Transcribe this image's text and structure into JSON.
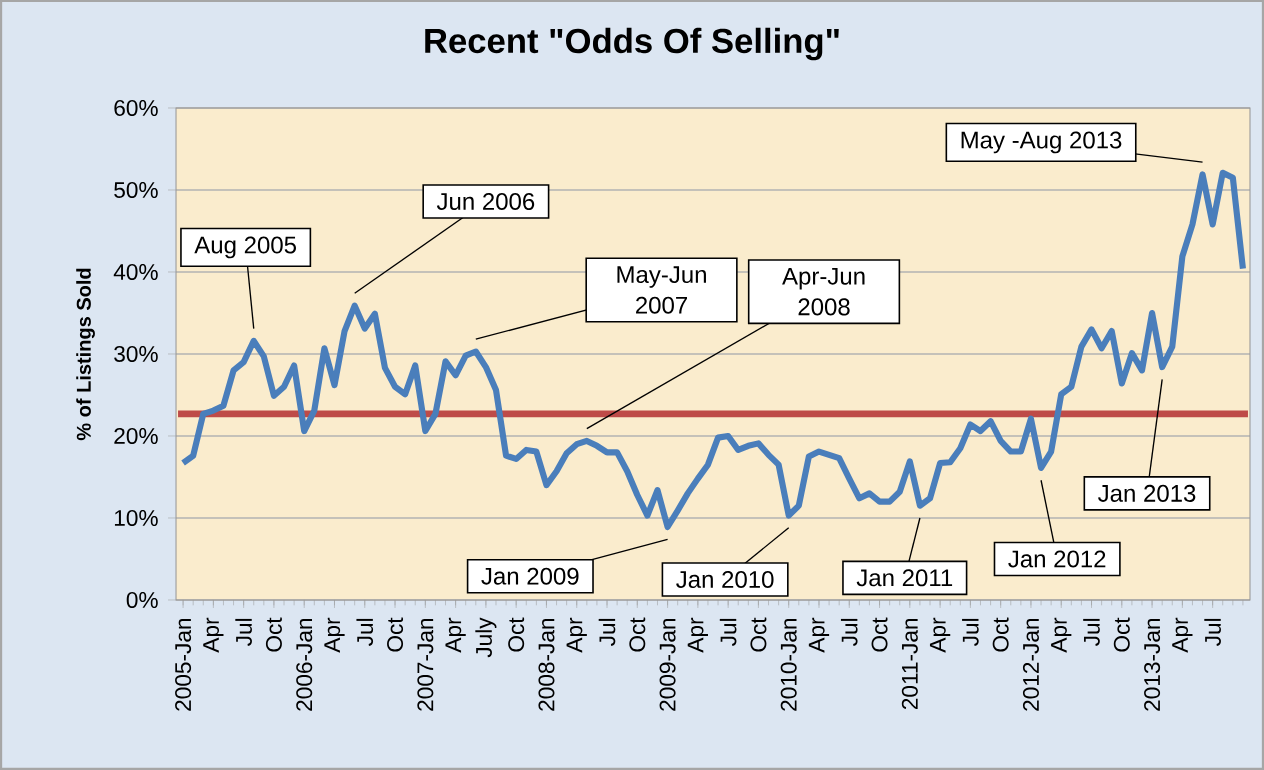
{
  "chart_data": {
    "type": "line",
    "title": "Recent \"Odds Of Selling\"",
    "ylabel": "% of Listings Sold",
    "categories": [
      "2005-Jan",
      null,
      null,
      "Apr",
      null,
      null,
      "Jul",
      null,
      null,
      "Oct",
      null,
      null,
      "2006-Jan",
      null,
      null,
      "Apr",
      null,
      null,
      "Jul",
      null,
      null,
      "Oct",
      null,
      null,
      "2007-Jan",
      null,
      null,
      "Apr",
      null,
      null,
      "July",
      null,
      null,
      "Oct",
      null,
      null,
      "2008-Jan",
      null,
      null,
      "Apr",
      null,
      null,
      "Jul",
      null,
      null,
      "Oct",
      null,
      null,
      "2009-Jan",
      null,
      null,
      "Apr",
      null,
      null,
      "Jul",
      null,
      null,
      "Oct",
      null,
      null,
      "2010-Jan",
      null,
      null,
      "Apr",
      null,
      null,
      "Jul",
      null,
      null,
      "Oct",
      null,
      null,
      "2011-Jan",
      null,
      null,
      "Apr",
      null,
      null,
      "Jul",
      null,
      null,
      "Oct",
      null,
      null,
      "2012-Jan",
      null,
      null,
      "Apr",
      null,
      null,
      "Jul",
      null,
      null,
      "Oct",
      null,
      null,
      "2013-Jan",
      null,
      null,
      "Apr",
      null,
      null,
      "Jul",
      null,
      null,
      null
    ],
    "series": [
      {
        "color": "#4a7ebb",
        "values": [
          16.7,
          17.6,
          22.7,
          23.1,
          23.7,
          28,
          29,
          31.6,
          29.7,
          24.9,
          26,
          28.6,
          20.6,
          23.1,
          30.7,
          26.2,
          32.8,
          35.9,
          33.1,
          34.9,
          28.3,
          26,
          25.1,
          28.6,
          20.6,
          22.7,
          29.1,
          27.4,
          29.8,
          30.3,
          28.4,
          25.6,
          17.6,
          17.2,
          18.3,
          18.1,
          14,
          15.7,
          17.9,
          19,
          19.4,
          18.8,
          18,
          18,
          15.7,
          12.8,
          10.3,
          13.4,
          8.9,
          10.9,
          13,
          14.8,
          16.5,
          19.8,
          20,
          18.3,
          18.8,
          19.1,
          17.7,
          16.5,
          10.3,
          11.5,
          17.5,
          18.1,
          17.7,
          17.3,
          14.8,
          12.4,
          13,
          12,
          12,
          13.2,
          16.9,
          11.5,
          12.4,
          16.7,
          16.8,
          18.5,
          21.4,
          20.6,
          21.8,
          19.4,
          18.1,
          18.1,
          22.1,
          16.1,
          18.1,
          25.1,
          26,
          30.9,
          33,
          30.7,
          32.8,
          26.4,
          30.1,
          28,
          35,
          28.4,
          30.9,
          41.9,
          45.8,
          51.9,
          45.8,
          52.1,
          51.5,
          40.4
        ]
      }
    ],
    "ylim": [
      0,
      60
    ],
    "yticks": [
      {
        "value": 0,
        "label": "0%"
      },
      {
        "value": 10,
        "label": "10%"
      },
      {
        "value": 20,
        "label": "20%"
      },
      {
        "value": 30,
        "label": "30%"
      },
      {
        "value": 40,
        "label": "40%"
      },
      {
        "value": 50,
        "label": "50%"
      },
      {
        "value": 60,
        "label": "60%"
      }
    ],
    "grid": "y",
    "line_style": "solid",
    "marker": "none",
    "ref_lines": [
      {
        "axis": "y",
        "value": 22.7,
        "color": "#be4b48"
      }
    ],
    "annotations": [
      "Aug 2005",
      "Jun 2006",
      "May-Jun 2007",
      "Apr-Jun 2008",
      "Jan 2009",
      "Jan 2010",
      "Jan 2011",
      "Jan 2012",
      "Jan 2013",
      "May -Aug 2013"
    ]
  }
}
